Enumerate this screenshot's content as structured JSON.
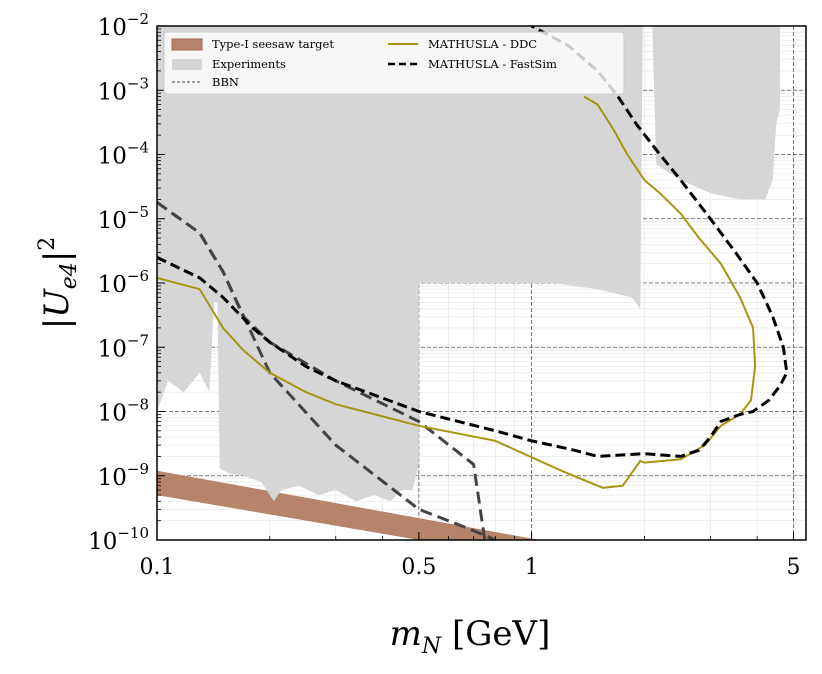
{
  "chart_data": {
    "type": "line",
    "xlabel": {
      "var": "m",
      "sub": "N",
      "unit": " [GeV]"
    },
    "ylabel": {
      "text": "|U",
      "sub": "e4",
      "close": "|",
      "sup": "2"
    },
    "xscale": "log",
    "yscale": "log",
    "xlim": [
      0.1,
      5.4
    ],
    "ylim": [
      1e-10,
      0.01
    ],
    "grid": true,
    "legend_position": "top-left",
    "x_ticks": [
      {
        "value": 0.1,
        "label": "0.1"
      },
      {
        "value": 0.5,
        "label": "0.5"
      },
      {
        "value": 1,
        "label": "1"
      },
      {
        "value": 5,
        "label": "5"
      }
    ],
    "y_ticks": [
      {
        "value": 1e-10,
        "base": "10",
        "exp": "−10"
      },
      {
        "value": 1e-09,
        "base": "10",
        "exp": "−9"
      },
      {
        "value": 1e-08,
        "base": "10",
        "exp": "−8"
      },
      {
        "value": 1e-07,
        "base": "10",
        "exp": "−7"
      },
      {
        "value": 1e-06,
        "base": "10",
        "exp": "−6"
      },
      {
        "value": 1e-05,
        "base": "10",
        "exp": "−5"
      },
      {
        "value": 0.0001,
        "base": "10",
        "exp": "−4"
      },
      {
        "value": 0.001,
        "base": "10",
        "exp": "−3"
      },
      {
        "value": 0.01,
        "base": "10",
        "exp": "−2"
      }
    ],
    "series": [
      {
        "name": "Type-I seesaw target",
        "style": "band",
        "color": "#b5846a",
        "upper": [
          [
            0.1,
            1.2e-09
          ],
          [
            1.05,
            1e-10
          ]
        ],
        "lower": [
          [
            0.1,
            5e-10
          ],
          [
            0.5,
            1e-10
          ]
        ]
      },
      {
        "name": "Experiments",
        "style": "fill",
        "color": "#d6d6d6",
        "regions": [
          [
            [
              0.1,
              0.01
            ],
            [
              0.1,
              1e-08
            ],
            [
              0.107,
              3e-08
            ],
            [
              0.118,
              2e-08
            ],
            [
              0.13,
              4e-08
            ],
            [
              0.138,
              2e-08
            ],
            [
              0.142,
              5e-07
            ],
            [
              0.145,
              5e-07
            ],
            [
              0.147,
              1.3e-09
            ],
            [
              0.155,
              1.1e-09
            ],
            [
              0.17,
              1e-09
            ],
            [
              0.19,
              8e-10
            ],
            [
              0.205,
              4e-10
            ],
            [
              0.215,
              6e-10
            ],
            [
              0.24,
              7e-10
            ],
            [
              0.27,
              5e-10
            ],
            [
              0.3,
              6e-10
            ],
            [
              0.34,
              4e-10
            ],
            [
              0.38,
              5e-10
            ],
            [
              0.42,
              4e-10
            ],
            [
              0.45,
              6e-10
            ],
            [
              0.48,
              6e-10
            ],
            [
              0.5,
              1.5e-09
            ],
            [
              0.5,
              1e-06
            ],
            [
              1.15,
              1e-06
            ],
            [
              1.5,
              8e-07
            ],
            [
              1.85,
              6e-07
            ],
            [
              1.95,
              4e-07
            ],
            [
              1.98,
              0.01
            ]
          ],
          [
            [
              2.1,
              0.01
            ],
            [
              2.15,
              7e-05
            ],
            [
              2.5,
              4e-05
            ],
            [
              3.0,
              2.5e-05
            ],
            [
              3.6,
              2e-05
            ],
            [
              4.2,
              2e-05
            ],
            [
              4.4,
              4e-05
            ],
            [
              4.5,
              0.0003
            ],
            [
              4.6,
              0.0005
            ],
            [
              4.6,
              0.01
            ]
          ]
        ]
      },
      {
        "name": "BBN",
        "style": "dashed",
        "color": "#444444",
        "points": [
          [
            0.1,
            1.8e-05
          ],
          [
            0.13,
            6e-06
          ],
          [
            0.15,
            1.5e-06
          ],
          [
            0.2,
            4e-08
          ],
          [
            0.3,
            3e-09
          ],
          [
            0.5,
            3e-10
          ],
          [
            0.7,
            1.4e-10
          ],
          [
            0.8,
            1e-10
          ]
        ]
      },
      {
        "name": "",
        "style": "dashed",
        "color": "#444444",
        "points": [
          [
            0.1,
            1.8e-05
          ],
          [
            0.13,
            6e-06
          ],
          [
            0.15,
            1.5e-06
          ],
          [
            0.17,
            3e-07
          ],
          [
            0.2,
            1.2e-07
          ],
          [
            0.3,
            3e-08
          ],
          [
            0.5,
            7e-09
          ],
          [
            0.7,
            1.5e-09
          ],
          [
            0.75,
            1e-10
          ]
        ]
      },
      {
        "name": "MATHUSLA - DDC",
        "style": "solid",
        "color": "#a69511",
        "points": [
          [
            0.1,
            1.2e-06
          ],
          [
            0.13,
            8e-07
          ],
          [
            0.15,
            2e-07
          ],
          [
            0.17,
            9e-08
          ],
          [
            0.2,
            4e-08
          ],
          [
            0.25,
            2e-08
          ],
          [
            0.3,
            1.3e-08
          ],
          [
            0.5,
            6e-09
          ],
          [
            0.8,
            3.5e-09
          ],
          [
            1.2,
            1.2e-09
          ],
          [
            1.55,
            6.5e-10
          ],
          [
            1.75,
            7e-10
          ],
          [
            1.85,
            1.1e-09
          ],
          [
            1.95,
            1.7e-09
          ],
          [
            2.0,
            1.6e-09
          ],
          [
            2.5,
            1.8e-09
          ],
          [
            2.9,
            3e-09
          ],
          [
            3.2,
            6e-09
          ],
          [
            3.6,
            9e-09
          ],
          [
            3.85,
            1.5e-08
          ],
          [
            3.95,
            5e-08
          ],
          [
            3.9,
            2e-07
          ],
          [
            3.6,
            6e-07
          ],
          [
            3.2,
            2e-06
          ],
          [
            2.8,
            5e-06
          ],
          [
            2.5,
            1.2e-05
          ],
          [
            2.2,
            2.5e-05
          ],
          [
            2.0,
            4e-05
          ],
          [
            1.8,
            0.0001
          ],
          [
            1.65,
            0.00025
          ],
          [
            1.5,
            0.0006
          ],
          [
            1.38,
            0.0008
          ]
        ]
      },
      {
        "name": "MATHUSLA - FastSim",
        "style": "dashed",
        "color": "#000000",
        "points": [
          [
            0.1,
            2.5e-06
          ],
          [
            0.13,
            1.2e-06
          ],
          [
            0.15,
            6e-07
          ],
          [
            0.18,
            2e-07
          ],
          [
            0.2,
            1.2e-07
          ],
          [
            0.25,
            5e-08
          ],
          [
            0.3,
            3e-08
          ],
          [
            0.5,
            1e-08
          ],
          [
            0.8,
            5e-09
          ],
          [
            1.0,
            3.5e-09
          ],
          [
            1.3,
            2.5e-09
          ],
          [
            1.5,
            2e-09
          ],
          [
            2.0,
            2.2e-09
          ],
          [
            2.5,
            2e-09
          ],
          [
            2.8,
            2.5e-09
          ],
          [
            3.0,
            4e-09
          ],
          [
            3.2,
            7e-09
          ],
          [
            3.6,
            9e-09
          ],
          [
            3.9,
            1e-08
          ],
          [
            4.3,
            1.5e-08
          ],
          [
            4.6,
            2.5e-08
          ],
          [
            4.8,
            4e-08
          ],
          [
            4.7,
            1e-07
          ],
          [
            4.4,
            3e-07
          ],
          [
            4.0,
            1e-06
          ],
          [
            3.5,
            3e-06
          ],
          [
            3.0,
            1e-05
          ],
          [
            2.5,
            4e-05
          ],
          [
            2.2,
            0.0001
          ],
          [
            1.9,
            0.0003
          ],
          [
            1.7,
            0.0008
          ],
          [
            1.5,
            0.002
          ],
          [
            1.25,
            0.005
          ],
          [
            1.0,
            0.01
          ]
        ]
      }
    ]
  }
}
